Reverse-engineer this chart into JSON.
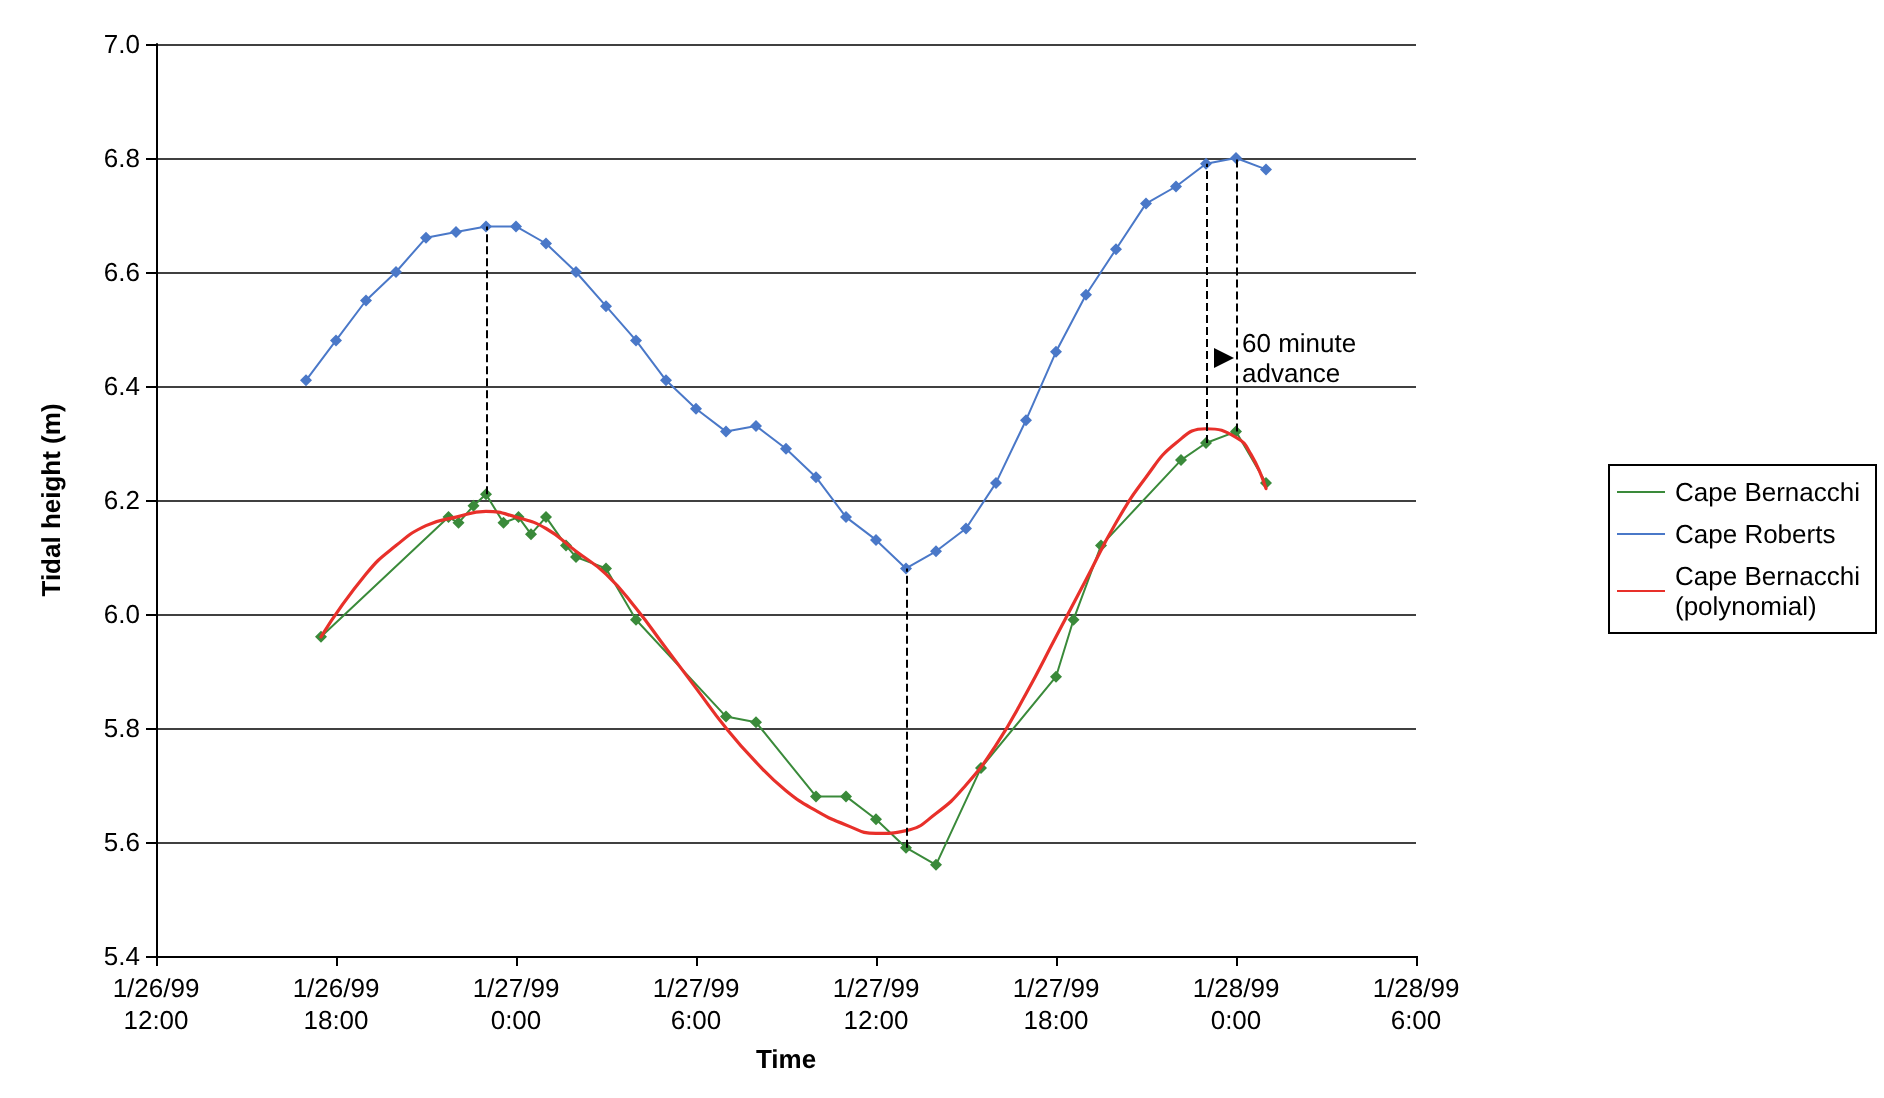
{
  "chart_data": {
    "type": "line",
    "xlabel": "Time",
    "ylabel": "Tidal height (m)",
    "xlim": [
      "1999-01-26T12:00",
      "1999-01-28T06:00"
    ],
    "xticks": [
      {
        "value": "1999-01-26T12:00",
        "label": "1/26/99\n12:00"
      },
      {
        "value": "1999-01-26T18:00",
        "label": "1/26/99\n18:00"
      },
      {
        "value": "1999-01-27T00:00",
        "label": "1/27/99\n0:00"
      },
      {
        "value": "1999-01-27T06:00",
        "label": "1/27/99\n6:00"
      },
      {
        "value": "1999-01-27T12:00",
        "label": "1/27/99\n12:00"
      },
      {
        "value": "1999-01-27T18:00",
        "label": "1/27/99\n18:00"
      },
      {
        "value": "1999-01-28T00:00",
        "label": "1/28/99\n0:00"
      },
      {
        "value": "1999-01-28T06:00",
        "label": "1/28/99\n6:00"
      }
    ],
    "ylim": [
      5.4,
      7.0
    ],
    "yticks": [
      {
        "value": 5.4,
        "label": "5.4"
      },
      {
        "value": 5.6,
        "label": "5.6"
      },
      {
        "value": 5.8,
        "label": "5.8"
      },
      {
        "value": 6.0,
        "label": "6.0"
      },
      {
        "value": 6.2,
        "label": "6.2"
      },
      {
        "value": 6.4,
        "label": "6.4"
      },
      {
        "value": 6.6,
        "label": "6.6"
      },
      {
        "value": 6.8,
        "label": "6.8"
      },
      {
        "value": 7.0,
        "label": "7.0"
      }
    ],
    "grid": "y",
    "legend": "right",
    "marker": "diamond",
    "series": [
      {
        "name": "Cape Bernacchi",
        "color": "#3a8a3a",
        "x": [
          "1999-01-26T17:30",
          "1999-01-26T21:45",
          "1999-01-26T22:05",
          "1999-01-26T22:35",
          "1999-01-26T23:00",
          "1999-01-26T23:35",
          "1999-01-27T00:05",
          "1999-01-27T00:30",
          "1999-01-27T01:00",
          "1999-01-27T01:40",
          "1999-01-27T02:00",
          "1999-01-27T03:00",
          "1999-01-27T04:00",
          "1999-01-27T07:00",
          "1999-01-27T08:00",
          "1999-01-27T10:00",
          "1999-01-27T11:00",
          "1999-01-27T12:00",
          "1999-01-27T13:00",
          "1999-01-27T14:00",
          "1999-01-27T15:30",
          "1999-01-27T18:00",
          "1999-01-27T18:35",
          "1999-01-27T19:30",
          "1999-01-27T22:10",
          "1999-01-27T23:00",
          "1999-01-28T00:00",
          "1999-01-28T01:00"
        ],
        "values": [
          5.96,
          6.17,
          6.16,
          6.19,
          6.21,
          6.16,
          6.17,
          6.14,
          6.17,
          6.12,
          6.1,
          6.08,
          5.99,
          5.82,
          5.81,
          5.68,
          5.68,
          5.64,
          5.59,
          5.56,
          5.73,
          5.89,
          5.99,
          6.12,
          6.27,
          6.3,
          6.32,
          6.23
        ]
      },
      {
        "name": "Cape Roberts",
        "color": "#4a78c8",
        "x": [
          "1999-01-26T17:00",
          "1999-01-26T18:00",
          "1999-01-26T19:00",
          "1999-01-26T20:00",
          "1999-01-26T21:00",
          "1999-01-26T22:00",
          "1999-01-26T23:00",
          "1999-01-27T00:00",
          "1999-01-27T01:00",
          "1999-01-27T02:00",
          "1999-01-27T03:00",
          "1999-01-27T04:00",
          "1999-01-27T05:00",
          "1999-01-27T06:00",
          "1999-01-27T07:00",
          "1999-01-27T08:00",
          "1999-01-27T09:00",
          "1999-01-27T10:00",
          "1999-01-27T11:00",
          "1999-01-27T12:00",
          "1999-01-27T13:00",
          "1999-01-27T14:00",
          "1999-01-27T15:00",
          "1999-01-27T16:00",
          "1999-01-27T17:00",
          "1999-01-27T18:00",
          "1999-01-27T19:00",
          "1999-01-27T20:00",
          "1999-01-27T21:00",
          "1999-01-27T22:00",
          "1999-01-27T23:00",
          "1999-01-28T00:00",
          "1999-01-28T01:00"
        ],
        "values": [
          6.41,
          6.48,
          6.55,
          6.6,
          6.66,
          6.67,
          6.68,
          6.68,
          6.65,
          6.6,
          6.54,
          6.48,
          6.41,
          6.36,
          6.32,
          6.33,
          6.29,
          6.24,
          6.17,
          6.13,
          6.08,
          6.11,
          6.15,
          6.23,
          6.34,
          6.46,
          6.56,
          6.64,
          6.72,
          6.75,
          6.79,
          6.8,
          6.78
        ]
      },
      {
        "name": "Cape Bernacchi\n(polynomial)",
        "color": "#e8302a",
        "marker": "none",
        "x": [
          "1999-01-26T17:30",
          "1999-01-26T19:00",
          "1999-01-26T20:00",
          "1999-01-26T21:00",
          "1999-01-26T22:00",
          "1999-01-26T23:00",
          "1999-01-27T00:00",
          "1999-01-27T01:00",
          "1999-01-27T02:00",
          "1999-01-27T03:00",
          "1999-01-27T04:00",
          "1999-01-27T05:00",
          "1999-01-27T06:00",
          "1999-01-27T07:00",
          "1999-01-27T08:00",
          "1999-01-27T09:00",
          "1999-01-27T10:00",
          "1999-01-27T11:00",
          "1999-01-27T12:00",
          "1999-01-27T13:00",
          "1999-01-27T14:00",
          "1999-01-27T15:00",
          "1999-01-27T16:00",
          "1999-01-27T17:00",
          "1999-01-27T18:00",
          "1999-01-27T19:00",
          "1999-01-27T20:00",
          "1999-01-27T21:00",
          "1999-01-27T22:00",
          "1999-01-27T23:00",
          "1999-01-28T00:00",
          "1999-01-28T00:30",
          "1999-01-28T01:00"
        ],
        "values": [
          5.96,
          6.07,
          6.12,
          6.155,
          6.17,
          6.18,
          6.17,
          6.15,
          6.11,
          6.07,
          6.01,
          5.94,
          5.87,
          5.8,
          5.74,
          5.69,
          5.655,
          5.63,
          5.615,
          5.62,
          5.65,
          5.7,
          5.77,
          5.86,
          5.96,
          6.06,
          6.16,
          6.24,
          6.3,
          6.325,
          6.31,
          6.28,
          6.22
        ]
      }
    ],
    "ref_lines": [
      {
        "axis": "x",
        "value": "1999-01-26T23:00",
        "line_style": "dashed",
        "color": "#000000"
      },
      {
        "axis": "x",
        "value": "1999-01-27T13:00",
        "line_style": "dashed",
        "color": "#000000"
      },
      {
        "axis": "x",
        "value": "1999-01-27T23:00",
        "line_style": "dashed",
        "color": "#000000"
      },
      {
        "axis": "x",
        "value": "1999-01-28T00:00",
        "line_style": "dashed",
        "color": "#000000"
      }
    ],
    "annotations": [
      {
        "text": "60 minute\nadvance",
        "x": "1999-01-28T00:00",
        "y": 6.45
      }
    ]
  }
}
